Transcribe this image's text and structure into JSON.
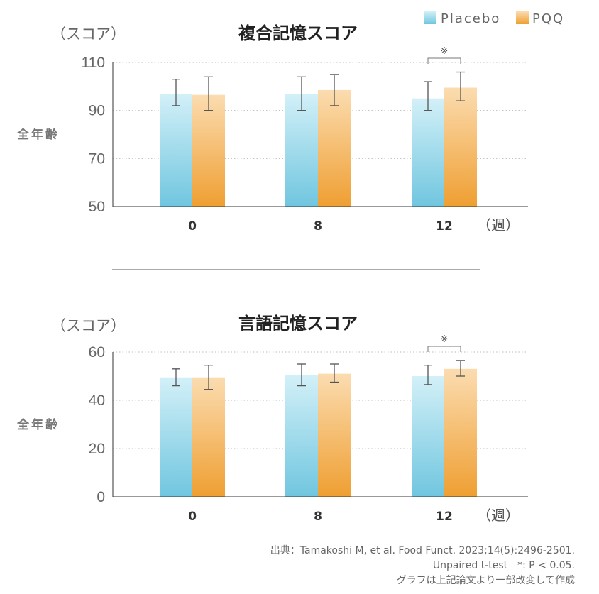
{
  "legend": {
    "items": [
      {
        "label": "Placebo",
        "color_top": "#cfeef7",
        "color_bottom": "#74c8e0"
      },
      {
        "label": "PQQ",
        "color_top": "#fad7a6",
        "color_bottom": "#f0a33a"
      }
    ]
  },
  "unit_label": "（スコア）",
  "side_label": "全年齢",
  "weeks_label": "（週）",
  "significance_mark": "※",
  "source": {
    "line1": "出典：Tamakoshi M, et al. Food Funct. 2023;14(5):2496-2501.",
    "line2": "Unpaired t-test　*: P < 0.05.",
    "line3": "グラフは上記論文より一部改変して作成"
  },
  "chart_data": [
    {
      "type": "bar",
      "title": "複合記憶スコア",
      "ylabel": "（スコア）",
      "xlabel": "（週）",
      "categories": [
        "0",
        "8",
        "12"
      ],
      "ylim": [
        50,
        110
      ],
      "yticks": [
        50,
        70,
        90,
        110
      ],
      "grid": true,
      "legend_position": "top-right",
      "series": [
        {
          "name": "Placebo",
          "values": [
            97,
            97,
            95
          ],
          "error_low": [
            92,
            90,
            90
          ],
          "error_high": [
            103,
            104,
            102
          ]
        },
        {
          "name": "PQQ",
          "values": [
            96.5,
            98.5,
            99.5
          ],
          "error_low": [
            90,
            92,
            94
          ],
          "error_high": [
            104,
            105,
            106
          ]
        }
      ],
      "significance": [
        {
          "category": "12",
          "mark": "※"
        }
      ]
    },
    {
      "type": "bar",
      "title": "言語記憶スコア",
      "ylabel": "（スコア）",
      "xlabel": "（週）",
      "categories": [
        "0",
        "8",
        "12"
      ],
      "ylim": [
        0,
        60
      ],
      "yticks": [
        0,
        20,
        40,
        60
      ],
      "grid": true,
      "series": [
        {
          "name": "Placebo",
          "values": [
            49.5,
            50.5,
            50
          ],
          "error_low": [
            46,
            46,
            46.5
          ],
          "error_high": [
            53,
            55,
            54.5
          ]
        },
        {
          "name": "PQQ",
          "values": [
            49.5,
            51,
            53
          ],
          "error_low": [
            44.5,
            47.5,
            50
          ],
          "error_high": [
            54.5,
            55,
            56.5
          ]
        }
      ],
      "significance": [
        {
          "category": "12",
          "mark": "※"
        }
      ]
    }
  ]
}
